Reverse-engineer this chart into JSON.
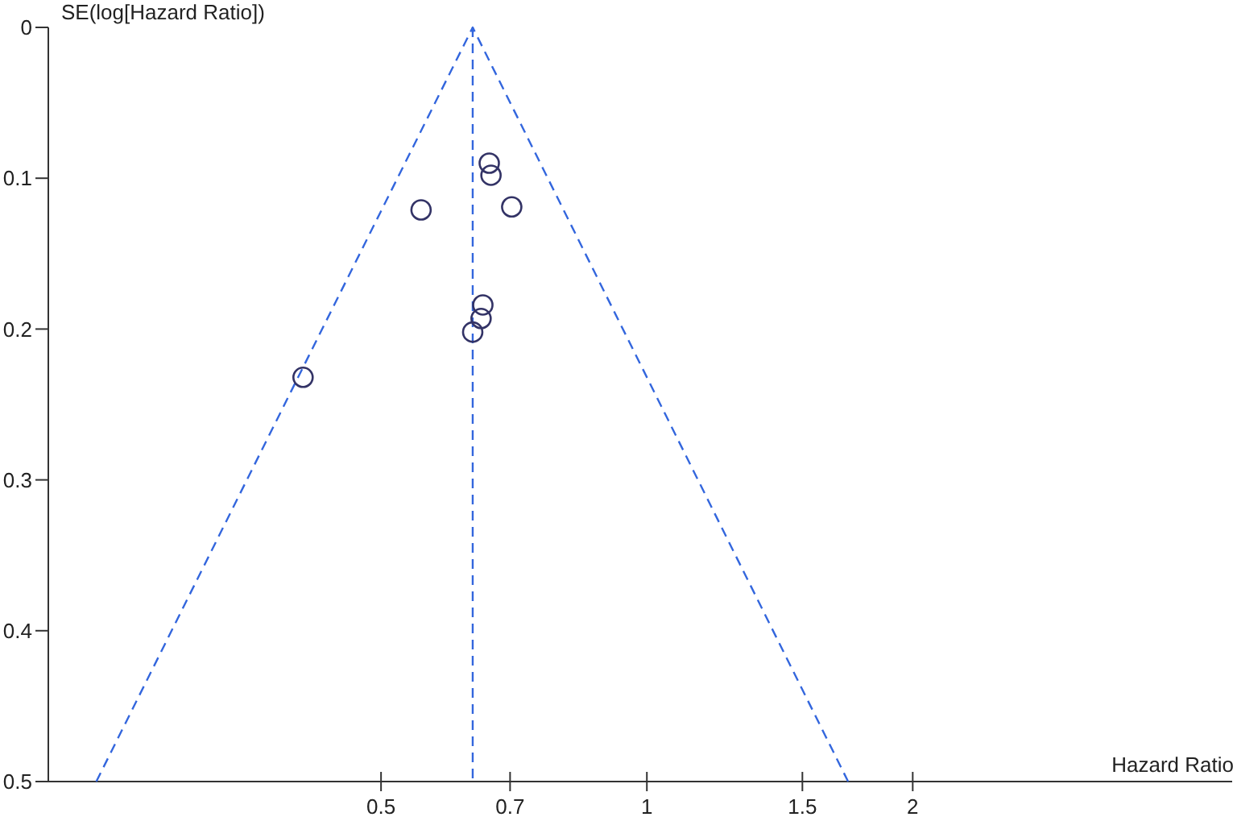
{
  "chart_data": {
    "type": "scatter",
    "xlabel": "Hazard Ratio",
    "ylabel": "SE(log[Hazard Ratio])",
    "log": "x",
    "xlim": [
      0.21,
      4.6
    ],
    "xticks": [
      0.5,
      0.7,
      1,
      1.5,
      2
    ],
    "ylim": [
      0.5,
      0
    ],
    "yticks": [
      0,
      0.1,
      0.2,
      0.3,
      0.4,
      0.5
    ],
    "grid": false,
    "series": [
      {
        "color": "#333366",
        "marker": "circle",
        "x": [
          0.663,
          0.666,
          0.555,
          0.703,
          0.652,
          0.649,
          0.635,
          0.408
        ],
        "values": [
          0.09,
          0.098,
          0.121,
          0.119,
          0.184,
          0.193,
          0.202,
          0.232
        ]
      },
      {
        "type": "line",
        "color": "#3366dd",
        "line_style": "dashed",
        "x": [
          0.238,
          0.635,
          1.69
        ],
        "values": [
          0.5,
          0,
          0.5
        ]
      }
    ],
    "ref_lines": [
      {
        "axis": "x",
        "value": 0.635,
        "color": "#3366dd",
        "line_style": "dashed"
      }
    ]
  }
}
